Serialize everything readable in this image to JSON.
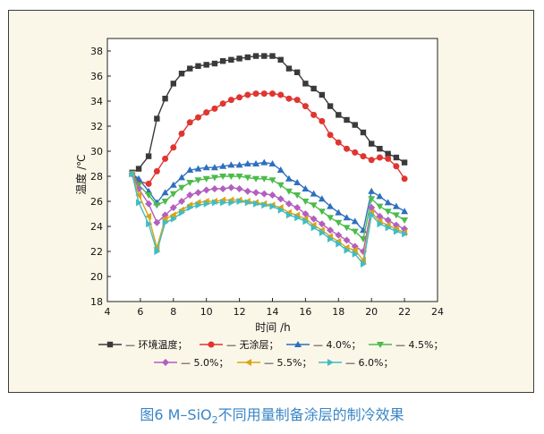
{
  "caption": {
    "prefix": "图6 M–SiO",
    "subscript": "2",
    "suffix": "不同用量制备涂层的制冷效果"
  },
  "chart_data": {
    "type": "line",
    "xlabel": "时间 /h",
    "ylabel": "温度 /℃",
    "xlim": [
      4,
      24
    ],
    "ylim": [
      18,
      39
    ],
    "xticks": [
      4,
      6,
      8,
      10,
      12,
      14,
      16,
      18,
      20,
      22,
      24
    ],
    "yticks": [
      18,
      20,
      22,
      24,
      26,
      28,
      30,
      32,
      34,
      36,
      38
    ],
    "grid": false,
    "legend_position": "bottom",
    "x": [
      5.5,
      5.9,
      6.5,
      7.0,
      7.5,
      8.0,
      8.5,
      9.0,
      9.5,
      10.0,
      10.5,
      11.0,
      11.5,
      12.0,
      12.5,
      13.0,
      13.5,
      14.0,
      14.5,
      15.0,
      15.5,
      16.0,
      16.5,
      17.0,
      17.5,
      18.0,
      18.5,
      19.0,
      19.5,
      20.0,
      20.5,
      21.0,
      21.5,
      22.0
    ],
    "series": [
      {
        "name": "环境温度",
        "legend_label": "— ■ — 环境温度；",
        "color": "#3a3a3a",
        "marker": "square",
        "values": [
          28.3,
          28.6,
          29.6,
          32.6,
          34.2,
          35.4,
          36.2,
          36.6,
          36.8,
          36.9,
          37.0,
          37.2,
          37.3,
          37.4,
          37.5,
          37.6,
          37.6,
          37.6,
          37.3,
          36.6,
          36.3,
          35.4,
          35.0,
          34.5,
          33.6,
          32.9,
          32.5,
          32.1,
          31.5,
          30.6,
          30.2,
          29.8,
          29.5,
          29.1
        ]
      },
      {
        "name": "无涂层",
        "legend_label": "— ● — 无涂层；",
        "color": "#e03530",
        "marker": "circle",
        "values": [
          28.2,
          27.6,
          27.4,
          28.4,
          29.4,
          30.3,
          31.4,
          32.3,
          32.7,
          33.1,
          33.4,
          33.8,
          34.1,
          34.3,
          34.5,
          34.6,
          34.6,
          34.6,
          34.5,
          34.2,
          34.1,
          33.6,
          32.9,
          32.4,
          31.3,
          30.7,
          30.2,
          29.9,
          29.6,
          29.3,
          29.5,
          29.4,
          28.8,
          27.8
        ]
      },
      {
        "name": "4.0%",
        "legend_label": "— ▲ — 4.0%；",
        "color": "#2e6fbf",
        "marker": "triangle-up",
        "values": [
          28.2,
          27.8,
          26.8,
          25.9,
          26.7,
          27.3,
          27.9,
          28.5,
          28.6,
          28.7,
          28.7,
          28.8,
          28.9,
          28.9,
          29.0,
          29.0,
          29.1,
          29.0,
          28.5,
          27.8,
          27.5,
          27.0,
          26.6,
          26.2,
          25.6,
          25.1,
          24.7,
          24.4,
          23.7,
          26.8,
          26.4,
          25.9,
          25.6,
          25.2
        ]
      },
      {
        "name": "4.5%",
        "legend_label": "— ▼ — 4.5%；",
        "color": "#4cbb4a",
        "marker": "triangle-down",
        "values": [
          28.2,
          27.3,
          26.5,
          25.7,
          26.0,
          26.6,
          27.1,
          27.5,
          27.7,
          27.8,
          27.9,
          28.0,
          28.0,
          28.0,
          27.9,
          27.8,
          27.8,
          27.7,
          27.3,
          26.8,
          26.5,
          26.0,
          25.7,
          25.2,
          24.7,
          24.3,
          23.9,
          23.6,
          23.0,
          26.2,
          25.6,
          25.2,
          24.9,
          24.5
        ]
      },
      {
        "name": "5.0%",
        "legend_label": "— ◆ — 5.0%；",
        "color": "#b25fbf",
        "marker": "diamond",
        "values": [
          28.2,
          27.0,
          25.8,
          24.3,
          24.9,
          25.5,
          26.0,
          26.5,
          26.7,
          26.9,
          27.0,
          27.0,
          27.1,
          27.0,
          26.8,
          26.7,
          26.6,
          26.5,
          26.2,
          25.8,
          25.5,
          25.0,
          24.6,
          24.2,
          23.7,
          23.3,
          22.9,
          22.4,
          22.0,
          25.5,
          24.8,
          24.5,
          24.1,
          23.8
        ]
      },
      {
        "name": "5.5%",
        "legend_label": "— ◀ — 5.5%；",
        "color": "#d9a414",
        "marker": "triangle-left",
        "values": [
          28.2,
          26.5,
          24.8,
          22.3,
          24.6,
          24.9,
          25.3,
          25.7,
          25.9,
          26.0,
          26.0,
          26.1,
          26.1,
          26.1,
          26.0,
          25.9,
          25.8,
          25.7,
          25.5,
          25.1,
          24.9,
          24.6,
          24.1,
          23.7,
          23.2,
          22.8,
          22.3,
          22.1,
          21.3,
          25.1,
          24.4,
          24.1,
          23.8,
          23.5
        ]
      },
      {
        "name": "6.0%",
        "legend_label": "— ▶ — 6.0%；",
        "color": "#3fbcc4",
        "marker": "triangle-right",
        "values": [
          28.2,
          25.9,
          24.2,
          22.0,
          24.3,
          24.6,
          25.1,
          25.5,
          25.7,
          25.8,
          25.9,
          25.9,
          25.9,
          26.0,
          25.9,
          25.8,
          25.7,
          25.6,
          25.3,
          24.9,
          24.7,
          24.4,
          23.9,
          23.5,
          23.0,
          22.6,
          22.1,
          21.8,
          21.0,
          24.9,
          24.2,
          23.9,
          23.6,
          23.4
        ]
      }
    ]
  }
}
